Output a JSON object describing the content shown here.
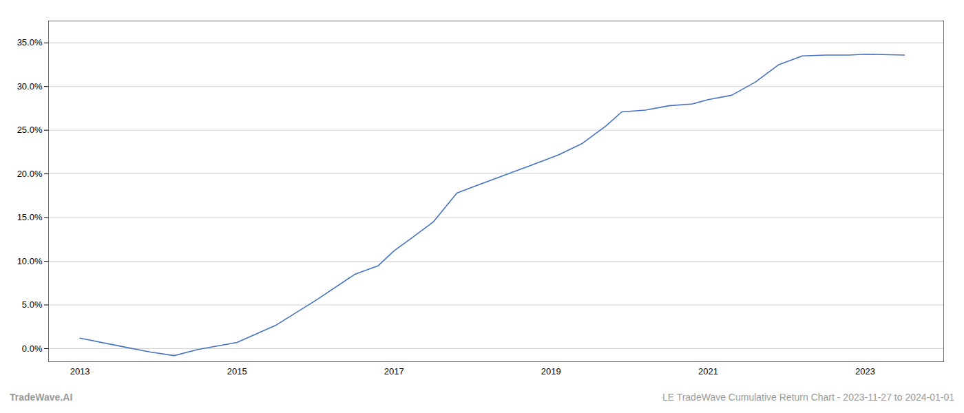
{
  "chart_data": {
    "type": "line",
    "title": "LE TradeWave Cumulative Return Chart - 2023-11-27 to 2024-01-01",
    "annotations": [
      "TradeWave.AI"
    ],
    "x": [
      2013.0,
      2013.5,
      2013.9,
      2014.2,
      2014.5,
      2015.0,
      2015.5,
      2016.0,
      2016.5,
      2016.8,
      2017.0,
      2017.2,
      2017.5,
      2017.8,
      2018.0,
      2018.3,
      2018.6,
      2018.9,
      2019.1,
      2019.4,
      2019.7,
      2019.9,
      2020.2,
      2020.5,
      2020.8,
      2021.0,
      2021.3,
      2021.6,
      2021.9,
      2022.2,
      2022.5,
      2022.8,
      2023.0,
      2023.5
    ],
    "values": [
      1.2,
      0.3,
      -0.4,
      -0.8,
      -0.1,
      0.7,
      2.7,
      5.5,
      8.5,
      9.5,
      11.2,
      12.5,
      14.5,
      17.8,
      18.5,
      19.5,
      20.5,
      21.5,
      22.2,
      23.5,
      25.5,
      27.1,
      27.3,
      27.8,
      28.0,
      28.5,
      29.0,
      30.5,
      32.5,
      33.5,
      33.6,
      33.6,
      33.7,
      33.6
    ],
    "color": "#4472c4",
    "xlim": [
      2012.6,
      2024.0
    ],
    "xticks": [
      2013,
      2015,
      2017,
      2019,
      2021,
      2023
    ],
    "ylim": [
      -1.5,
      37.5
    ],
    "yticks": [
      {
        "value": 0.0,
        "label": "0.0%"
      },
      {
        "value": 5.0,
        "label": "5.0%"
      },
      {
        "value": 10.0,
        "label": "10.0%"
      },
      {
        "value": 15.0,
        "label": "15.0%"
      },
      {
        "value": 20.0,
        "label": "20.0%"
      },
      {
        "value": 25.0,
        "label": "25.0%"
      },
      {
        "value": 30.0,
        "label": "30.0%"
      },
      {
        "value": 35.0,
        "label": "35.0%"
      }
    ],
    "grid": true
  }
}
